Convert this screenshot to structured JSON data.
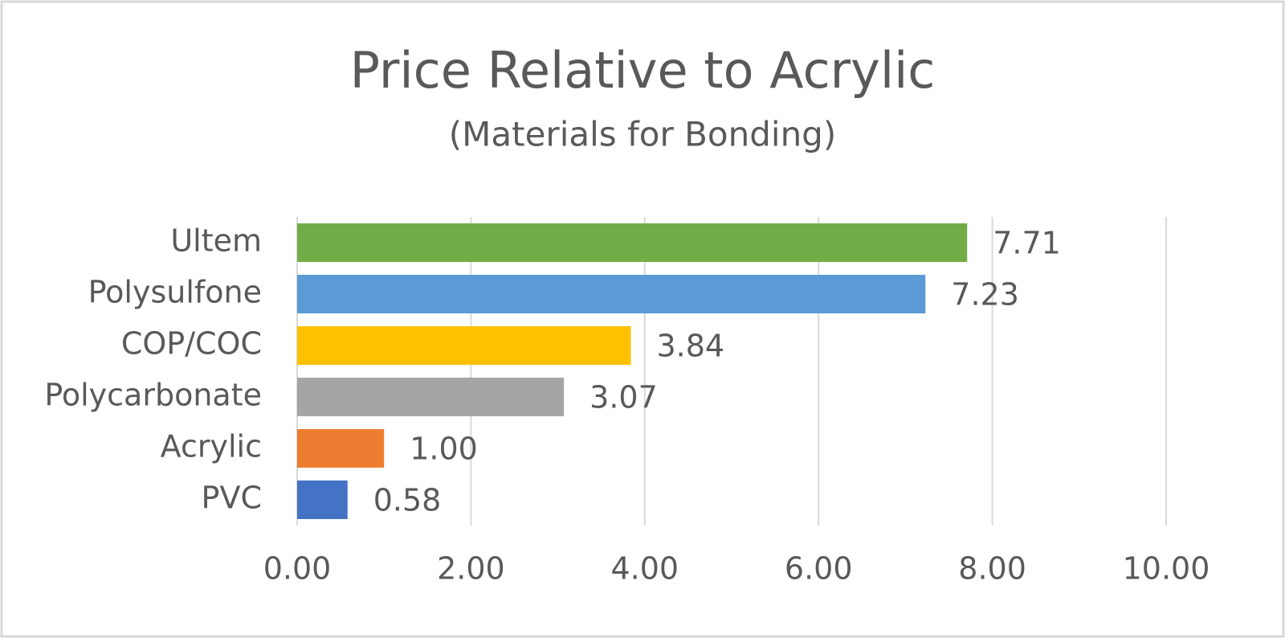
{
  "chart_data": {
    "type": "hbar",
    "title": "Price Relative to Acrylic",
    "subtitle": "(Materials for Bonding)",
    "categories": [
      "Ultem",
      "Polysulfone",
      "COP/COC",
      "Polycarbonate",
      "Acrylic",
      "PVC"
    ],
    "values": [
      7.71,
      7.23,
      3.84,
      3.07,
      1.0,
      0.58
    ],
    "value_labels": [
      "7.71",
      "7.23",
      "3.84",
      "3.07",
      "1.00",
      "0.58"
    ],
    "colors": [
      "#70ad47",
      "#5b9bd5",
      "#ffc000",
      "#a5a5a5",
      "#ed7d31",
      "#4472c4"
    ],
    "xlim": [
      0,
      10
    ],
    "xticks": [
      {
        "value": 0,
        "label": "0.00"
      },
      {
        "value": 2,
        "label": "2.00"
      },
      {
        "value": 4,
        "label": "4.00"
      },
      {
        "value": 6,
        "label": "6.00"
      },
      {
        "value": 8,
        "label": "8.00"
      },
      {
        "value": 10,
        "label": "10.00"
      }
    ],
    "grid": true
  }
}
